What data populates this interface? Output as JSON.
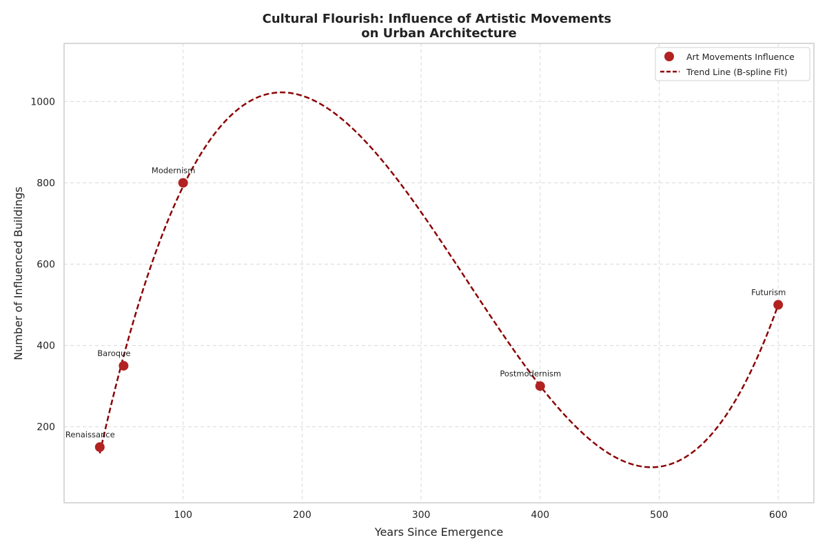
{
  "chart_data": {
    "type": "scatter",
    "title_lines": [
      "Cultural Flourish: Influence of Artistic Movements",
      "on Urban Architecture"
    ],
    "xlabel": "Years Since Emergence",
    "ylabel": "Number of Influenced Buildings",
    "xlim": [
      0,
      630
    ],
    "ylim": [
      13,
      1143
    ],
    "xticks": [
      100,
      200,
      300,
      400,
      500,
      600
    ],
    "yticks": [
      200,
      400,
      600,
      800,
      1000
    ],
    "grid": true,
    "legend_position": "top-right",
    "series": [
      {
        "name": "Art Movements Influence",
        "kind": "scatter",
        "color": "#b22222",
        "points": [
          {
            "label": "Renaissance",
            "x": 30,
            "y": 150
          },
          {
            "label": "Baroque",
            "x": 50,
            "y": 350
          },
          {
            "label": "Modernism",
            "x": 100,
            "y": 800
          },
          {
            "label": "Postmodernism",
            "x": 400,
            "y": 300
          },
          {
            "label": "Futurism",
            "x": 600,
            "y": 500
          }
        ]
      },
      {
        "name": "Trend Line (B-spline Fit)",
        "kind": "line",
        "color": "#8b0000",
        "dashed": true,
        "x_range": [
          30,
          600
        ]
      }
    ]
  }
}
